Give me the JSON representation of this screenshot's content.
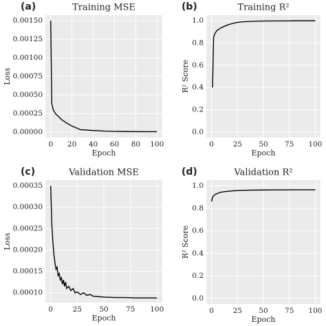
{
  "chart_data": [
    {
      "type": "line",
      "panel": "(a)",
      "title": "Training MSE",
      "x_label": "Epoch",
      "y_label": "Loss",
      "grid": true,
      "color": "#000000",
      "x": [
        0,
        1,
        2,
        3,
        5,
        8,
        10,
        15,
        20,
        25,
        28,
        30,
        40,
        50,
        60,
        70,
        80,
        90,
        100
      ],
      "values": [
        0.0015,
        0.00038,
        0.00032,
        0.00028,
        0.00024,
        0.0002,
        0.00017,
        0.00012,
        8e-05,
        5e-05,
        3e-05,
        3e-05,
        2e-05,
        1.2e-05,
        8e-06,
        6e-06,
        5e-06,
        4e-06,
        4e-06
      ],
      "xlim": [
        -5,
        105
      ],
      "xticks": [
        0,
        20,
        40,
        60,
        80,
        100
      ],
      "ylim": [
        -7.5e-05,
        0.001575
      ],
      "yticks": [
        {
          "value": 0,
          "label": "0.00000"
        },
        {
          "value": 0.00025,
          "label": "0.00025"
        },
        {
          "value": 0.0005,
          "label": "0.00050"
        },
        {
          "value": 0.00075,
          "label": "0.00075"
        },
        {
          "value": 0.001,
          "label": "0.00100"
        },
        {
          "value": 0.00125,
          "label": "0.00125"
        },
        {
          "value": 0.0015,
          "label": "0.00150"
        }
      ]
    },
    {
      "type": "line",
      "panel": "(b)",
      "title": "Training R²",
      "x_label": "Epoch",
      "y_label": "R² Score",
      "grid": true,
      "color": "#000000",
      "x": [
        1,
        2,
        3,
        5,
        8,
        10,
        15,
        20,
        25,
        30,
        40,
        50,
        60,
        70,
        80,
        90,
        100
      ],
      "values": [
        0.4,
        0.85,
        0.88,
        0.91,
        0.93,
        0.94,
        0.96,
        0.975,
        0.985,
        0.99,
        0.995,
        0.997,
        0.998,
        0.998,
        0.999,
        0.999,
        0.999
      ],
      "xlim": [
        -5,
        105
      ],
      "xticks": [
        0,
        25,
        50,
        75,
        100
      ],
      "ylim": [
        -0.05,
        1.05
      ],
      "yticks": [
        {
          "value": 0,
          "label": "0.0"
        },
        0.2,
        0.4,
        0.6,
        0.8,
        {
          "value": 1,
          "label": "1.0"
        }
      ]
    },
    {
      "type": "line",
      "panel": "(c)",
      "title": "Validation MSE",
      "x_label": "Epoch",
      "y_label": "Loss",
      "grid": true,
      "color": "#000000",
      "x": [
        0,
        1,
        2,
        3,
        4,
        5,
        6,
        7,
        8,
        9,
        10,
        11,
        12,
        13,
        14,
        15,
        17,
        19,
        21,
        23,
        25,
        28,
        31,
        34,
        37,
        40,
        45,
        50,
        60,
        70,
        80,
        90,
        100
      ],
      "values": [
        0.00035,
        0.00026,
        0.00022,
        0.00019,
        0.00017,
        0.000155,
        0.00016,
        0.00014,
        0.000145,
        0.00013,
        0.000135,
        0.00012,
        0.00013,
        0.000115,
        0.000125,
        0.00011,
        0.000115,
        0.000105,
        0.00011,
        0.0001,
        0.000102,
        9.6e-05,
        0.0001,
        9.4e-05,
        9.6e-05,
        9.2e-05,
        9.1e-05,
        9e-05,
        8.9e-05,
        8.9e-05,
        8.8e-05,
        8.8e-05,
        8.8e-05
      ],
      "xlim": [
        -5,
        105
      ],
      "xticks": [
        0,
        25,
        50,
        75,
        100
      ],
      "ylim": [
        7.7e-05,
        0.000363
      ],
      "yticks": [
        {
          "value": 0.0001,
          "label": "0.00010"
        },
        {
          "value": 0.00015,
          "label": "0.00015"
        },
        {
          "value": 0.0002,
          "label": "0.00020"
        },
        {
          "value": 0.00025,
          "label": "0.00025"
        },
        {
          "value": 0.0003,
          "label": "0.00030"
        },
        {
          "value": 0.00035,
          "label": "0.00035"
        }
      ]
    },
    {
      "type": "line",
      "panel": "(d)",
      "title": "Validation R²",
      "x_label": "Epoch",
      "y_label": "R² Score",
      "grid": true,
      "color": "#000000",
      "x": [
        0,
        1,
        2,
        3,
        5,
        8,
        10,
        15,
        20,
        25,
        30,
        40,
        50,
        60,
        70,
        80,
        90,
        100
      ],
      "values": [
        0.86,
        0.9,
        0.91,
        0.92,
        0.93,
        0.94,
        0.945,
        0.95,
        0.955,
        0.958,
        0.96,
        0.962,
        0.963,
        0.964,
        0.964,
        0.965,
        0.965,
        0.965
      ],
      "xlim": [
        -5,
        105
      ],
      "xticks": [
        0,
        25,
        50,
        75,
        100
      ],
      "ylim": [
        -0.05,
        1.05
      ],
      "yticks": [
        {
          "value": 0,
          "label": "0.0"
        },
        0.2,
        0.4,
        0.6,
        0.8,
        {
          "value": 1,
          "label": "1.0"
        }
      ]
    }
  ]
}
